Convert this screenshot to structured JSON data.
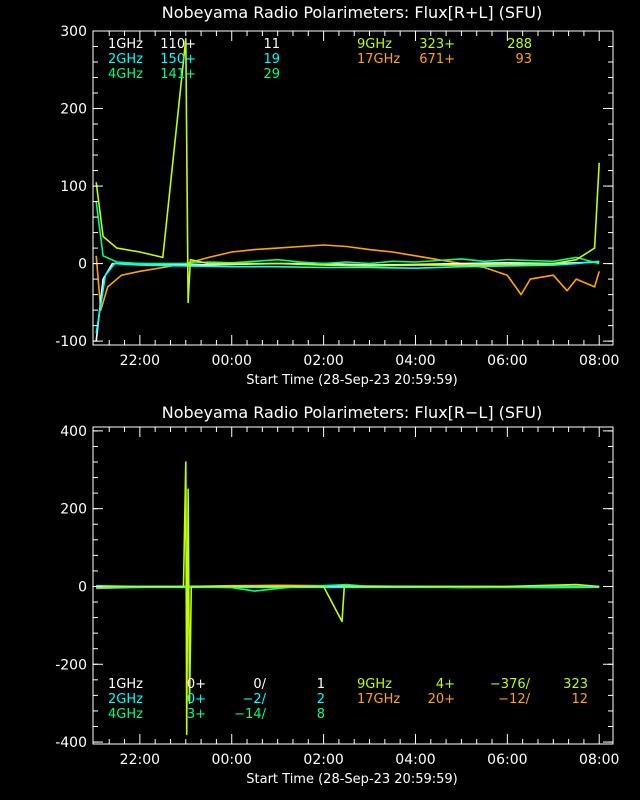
{
  "chart_data": [
    {
      "type": "line",
      "title": "Nobeyama Radio Polarimeters: Flux[R+L] (SFU)",
      "xlabel": "Start Time (28-Sep-23 20:59:59)",
      "ylabel": "",
      "x_ticks": [
        "22:00",
        "00:00",
        "02:00",
        "04:00",
        "06:00",
        "08:00"
      ],
      "x_tick_hours": [
        22,
        24,
        26,
        28,
        30,
        32
      ],
      "xlim": [
        20.98,
        32.3
      ],
      "ylim": [
        -105,
        300
      ],
      "y_ticks": [
        -100,
        0,
        100,
        200,
        300
      ],
      "grid": false,
      "legend": {
        "left": [
          {
            "name": "1GHz",
            "a": "110+",
            "b": "11",
            "color": "#ffffff"
          },
          {
            "name": "2GHz",
            "a": "150+",
            "b": "19",
            "color": "#00ffff"
          },
          {
            "name": "4GHz",
            "a": "141+",
            "b": "29",
            "color": "#00ff7f"
          }
        ],
        "right": [
          {
            "name": "9GHz",
            "a": "323+",
            "b": "288",
            "color": "#bfff00"
          },
          {
            "name": "17GHz",
            "a": "671+",
            "b": "93",
            "color": "#ffa500"
          }
        ]
      },
      "series": [
        {
          "name": "17GHz",
          "color": "#ffa500",
          "points": [
            [
              21.05,
              10
            ],
            [
              21.15,
              -60
            ],
            [
              21.3,
              -30
            ],
            [
              21.6,
              -15
            ],
            [
              22.0,
              -10
            ],
            [
              22.5,
              -5
            ],
            [
              23.0,
              0
            ],
            [
              23.5,
              8
            ],
            [
              24.0,
              15
            ],
            [
              24.5,
              18
            ],
            [
              25.0,
              20
            ],
            [
              25.5,
              22
            ],
            [
              26.0,
              24
            ],
            [
              26.5,
              22
            ],
            [
              27.0,
              18
            ],
            [
              27.5,
              15
            ],
            [
              28.0,
              10
            ],
            [
              28.5,
              5
            ],
            [
              29.0,
              0
            ],
            [
              29.5,
              -5
            ],
            [
              30.0,
              -15
            ],
            [
              30.3,
              -40
            ],
            [
              30.5,
              -20
            ],
            [
              31.0,
              -15
            ],
            [
              31.3,
              -35
            ],
            [
              31.5,
              -20
            ],
            [
              31.9,
              -30
            ],
            [
              32.0,
              -10
            ]
          ]
        },
        {
          "name": "1GHz",
          "color": "#ffffff",
          "points": [
            [
              21.05,
              -100
            ],
            [
              21.2,
              -20
            ],
            [
              21.4,
              0
            ],
            [
              22.0,
              0
            ],
            [
              23.0,
              -2
            ],
            [
              24.0,
              -1
            ],
            [
              25.0,
              0
            ],
            [
              26.0,
              0
            ],
            [
              27.0,
              -2
            ],
            [
              28.0,
              -1
            ],
            [
              29.0,
              0
            ],
            [
              30.0,
              1
            ],
            [
              31.0,
              0
            ],
            [
              32.0,
              2
            ]
          ]
        },
        {
          "name": "2GHz",
          "color": "#00ffff",
          "points": [
            [
              21.05,
              -90
            ],
            [
              21.25,
              -15
            ],
            [
              21.45,
              0
            ],
            [
              22.0,
              -2
            ],
            [
              23.0,
              -3
            ],
            [
              24.0,
              -4
            ],
            [
              25.0,
              -4
            ],
            [
              26.0,
              -5
            ],
            [
              27.0,
              -5
            ],
            [
              28.0,
              -6
            ],
            [
              29.0,
              -4
            ],
            [
              30.0,
              -3
            ],
            [
              31.0,
              -2
            ],
            [
              31.5,
              0
            ],
            [
              32.0,
              3
            ]
          ]
        },
        {
          "name": "4GHz",
          "color": "#00ff7f",
          "points": [
            [
              21.05,
              80
            ],
            [
              21.2,
              10
            ],
            [
              21.5,
              2
            ],
            [
              22.0,
              0
            ],
            [
              23.0,
              0
            ],
            [
              23.5,
              2
            ],
            [
              24.0,
              1
            ],
            [
              24.5,
              3
            ],
            [
              25.0,
              5
            ],
            [
              25.5,
              2
            ],
            [
              26.0,
              0
            ],
            [
              26.5,
              2
            ],
            [
              27.0,
              0
            ],
            [
              27.5,
              3
            ],
            [
              28.0,
              2
            ],
            [
              28.5,
              4
            ],
            [
              29.0,
              6
            ],
            [
              29.5,
              3
            ],
            [
              30.0,
              5
            ],
            [
              30.5,
              4
            ],
            [
              31.0,
              3
            ],
            [
              31.5,
              8
            ],
            [
              32.0,
              0
            ]
          ]
        },
        {
          "name": "9GHz",
          "color": "#bfff00",
          "points": [
            [
              21.05,
              105
            ],
            [
              21.2,
              35
            ],
            [
              21.5,
              20
            ],
            [
              22.0,
              15
            ],
            [
              22.5,
              8
            ],
            [
              23.0,
              290
            ],
            [
              23.05,
              -50
            ],
            [
              23.1,
              5
            ],
            [
              23.5,
              0
            ],
            [
              24.0,
              0
            ],
            [
              25.0,
              0
            ],
            [
              26.0,
              -2
            ],
            [
              27.0,
              -3
            ],
            [
              28.0,
              -2
            ],
            [
              29.0,
              -2
            ],
            [
              30.0,
              -1
            ],
            [
              31.0,
              0
            ],
            [
              31.5,
              5
            ],
            [
              31.9,
              20
            ],
            [
              32.0,
              130
            ]
          ]
        }
      ]
    },
    {
      "type": "line",
      "title": "Nobeyama Radio Polarimeters: Flux[R−L] (SFU)",
      "xlabel": "Start Time (28-Sep-23 20:59:59)",
      "ylabel": "",
      "x_ticks": [
        "22:00",
        "00:00",
        "02:00",
        "04:00",
        "06:00",
        "08:00"
      ],
      "x_tick_hours": [
        22,
        24,
        26,
        28,
        30,
        32
      ],
      "xlim": [
        20.98,
        32.3
      ],
      "ylim": [
        -405,
        410
      ],
      "y_ticks": [
        -400,
        -200,
        0,
        200,
        400
      ],
      "grid": false,
      "legend": {
        "left": [
          {
            "name": "1GHz",
            "a": "0+",
            "b": "0/",
            "c": "1",
            "color": "#ffffff"
          },
          {
            "name": "2GHz",
            "a": "0+",
            "b": "−2/",
            "c": "2",
            "color": "#00ffff"
          },
          {
            "name": "4GHz",
            "a": "3+",
            "b": "−14/",
            "c": "8",
            "color": "#00ff7f"
          }
        ],
        "right": [
          {
            "name": "9GHz",
            "a": "4+",
            "b": "−376/",
            "c": "323",
            "color": "#bfff00"
          },
          {
            "name": "17GHz",
            "a": "20+",
            "b": "−12/",
            "c": "12",
            "color": "#ffa500"
          }
        ]
      },
      "series": [
        {
          "name": "17GHz",
          "color": "#ffa500",
          "points": [
            [
              21.05,
              -5
            ],
            [
              22.0,
              -2
            ],
            [
              23.0,
              0
            ],
            [
              24.0,
              2
            ],
            [
              25.0,
              3
            ],
            [
              26.0,
              2
            ],
            [
              27.0,
              1
            ],
            [
              28.0,
              0
            ],
            [
              29.0,
              -1
            ],
            [
              30.0,
              -2
            ],
            [
              31.0,
              -3
            ],
            [
              32.0,
              -2
            ]
          ]
        },
        {
          "name": "1GHz",
          "color": "#ffffff",
          "points": [
            [
              21.05,
              0
            ],
            [
              22.0,
              0
            ],
            [
              24.0,
              0
            ],
            [
              26.0,
              0
            ],
            [
              28.0,
              0
            ],
            [
              30.0,
              0
            ],
            [
              32.0,
              0
            ]
          ]
        },
        {
          "name": "2GHz",
          "color": "#00ffff",
          "points": [
            [
              21.05,
              -2
            ],
            [
              23.0,
              -2
            ],
            [
              25.0,
              -2
            ],
            [
              27.0,
              -2
            ],
            [
              29.0,
              -2
            ],
            [
              31.0,
              -2
            ],
            [
              32.0,
              -1
            ]
          ]
        },
        {
          "name": "4GHz",
          "color": "#00ff7f",
          "points": [
            [
              21.05,
              2
            ],
            [
              22.0,
              0
            ],
            [
              23.0,
              0
            ],
            [
              24.0,
              -3
            ],
            [
              24.5,
              -12
            ],
            [
              25.0,
              -5
            ],
            [
              25.5,
              0
            ],
            [
              26.0,
              2
            ],
            [
              26.5,
              5
            ],
            [
              27.0,
              0
            ],
            [
              28.0,
              0
            ],
            [
              29.0,
              -3
            ],
            [
              30.0,
              -2
            ],
            [
              31.0,
              0
            ],
            [
              32.0,
              0
            ]
          ]
        },
        {
          "name": "9GHz",
          "color": "#bfff00",
          "points": [
            [
              21.05,
              0
            ],
            [
              22.0,
              0
            ],
            [
              22.95,
              0
            ],
            [
              23.0,
              320
            ],
            [
              23.02,
              -380
            ],
            [
              23.05,
              250
            ],
            [
              23.08,
              -300
            ],
            [
              23.12,
              0
            ],
            [
              24.0,
              0
            ],
            [
              25.0,
              0
            ],
            [
              26.0,
              0
            ],
            [
              26.4,
              -90
            ],
            [
              26.45,
              0
            ],
            [
              28.0,
              0
            ],
            [
              30.0,
              0
            ],
            [
              31.5,
              5
            ],
            [
              32.0,
              0
            ]
          ]
        }
      ]
    }
  ]
}
